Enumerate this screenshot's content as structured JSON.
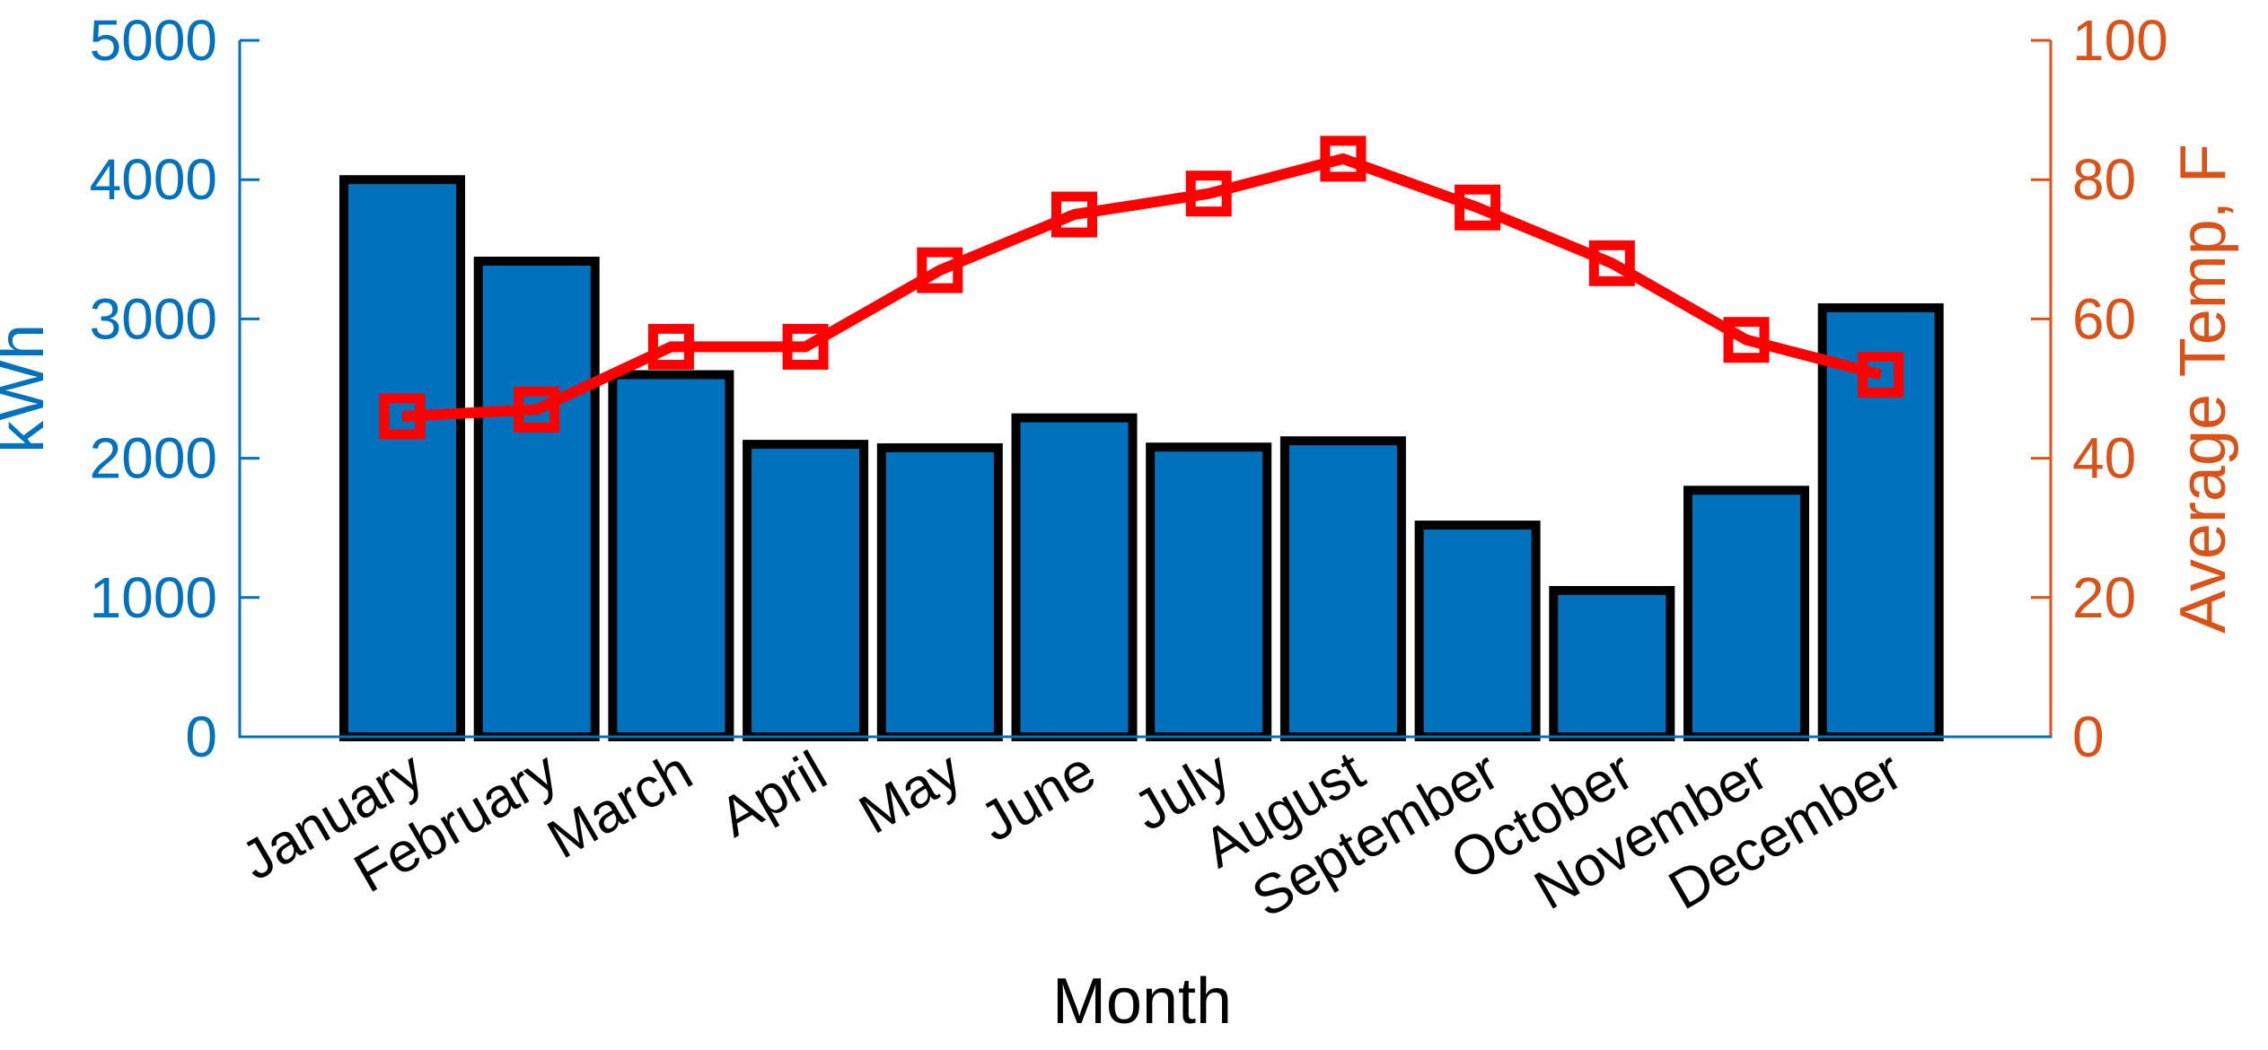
{
  "chart_data": {
    "type": "bar",
    "subtype": "dual-axis bar + line combo (MATLAB yyaxis style)",
    "title": "",
    "categories": [
      "January",
      "February",
      "March",
      "April",
      "May",
      "June",
      "July",
      "August",
      "September",
      "October",
      "November",
      "December"
    ],
    "series": [
      {
        "name": "kWh",
        "type": "bar",
        "axis": "left",
        "values": [
          4000,
          3415,
          2600,
          2100,
          2075,
          2290,
          2080,
          2125,
          1520,
          1050,
          1770,
          3080
        ],
        "bar_fill": "#0072BD",
        "bar_edge": "#000000"
      },
      {
        "name": "Average Temp, F",
        "type": "line",
        "axis": "right",
        "values": [
          46,
          47,
          56,
          56,
          67,
          75,
          78,
          83,
          76,
          68,
          57,
          52
        ],
        "line_color": "#FF0000",
        "marker": "open-square"
      }
    ],
    "left_axis": {
      "label": "kWh",
      "color": "#0072BD",
      "min": 0,
      "max": 5000,
      "ticks": [
        0,
        1000,
        2000,
        3000,
        4000,
        5000
      ]
    },
    "right_axis": {
      "label": "Average Temp, F",
      "color": "#D95319",
      "min": 0,
      "max": 100,
      "ticks": [
        0,
        20,
        40,
        60,
        80,
        100
      ]
    },
    "x_axis": {
      "label": "Month",
      "color": "#0072BD",
      "tick_angle_deg": 30
    },
    "grid": false,
    "legend": "none",
    "background": "#FFFFFF"
  }
}
